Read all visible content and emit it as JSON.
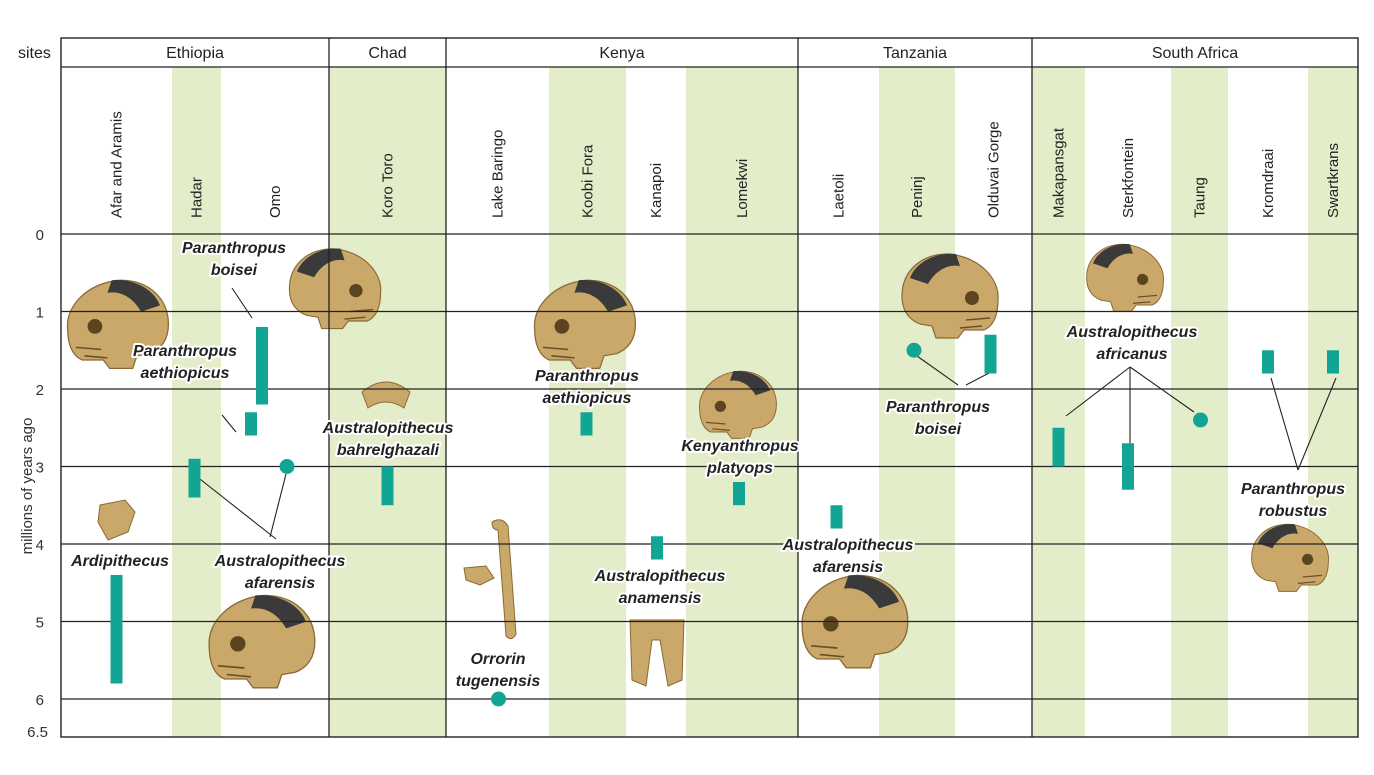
{
  "chart_data": {
    "type": "range-timeline",
    "ylabel": "millions of years ago",
    "y_ticks": [
      0,
      1,
      2,
      3,
      4,
      5,
      6,
      6.5
    ],
    "y_tick_labels": [
      "0",
      "1",
      "2",
      "3",
      "4",
      "5",
      "6",
      "6.5"
    ],
    "header_label": "sites",
    "countries": [
      {
        "name": "Ethiopia",
        "sites": [
          0,
          1,
          2
        ]
      },
      {
        "name": "Chad",
        "sites": [
          3
        ]
      },
      {
        "name": "Kenya",
        "sites": [
          4,
          5,
          6,
          7
        ]
      },
      {
        "name": "Tanzania",
        "sites": [
          8,
          9,
          10
        ]
      },
      {
        "name": "South Africa",
        "sites": [
          11,
          12,
          13,
          14,
          15
        ]
      }
    ],
    "sites": [
      {
        "name": "Afar and Aramis",
        "shaded": false
      },
      {
        "name": "Hadar",
        "shaded": true
      },
      {
        "name": "Omo",
        "shaded": false
      },
      {
        "name": "Koro Toro",
        "shaded": true
      },
      {
        "name": "Lake Baringo",
        "shaded": false
      },
      {
        "name": "Koobi Fora",
        "shaded": true
      },
      {
        "name": "Kanapoi",
        "shaded": false
      },
      {
        "name": "Lomekwi",
        "shaded": true
      },
      {
        "name": "Laetoli",
        "shaded": false
      },
      {
        "name": "Peninj",
        "shaded": true
      },
      {
        "name": "Olduvai Gorge",
        "shaded": false
      },
      {
        "name": "Makapansgat",
        "shaded": true
      },
      {
        "name": "Sterkfontein",
        "shaded": false
      },
      {
        "name": "Taung",
        "shaded": true
      },
      {
        "name": "Kromdraai",
        "shaded": false
      },
      {
        "name": "Swartkrans",
        "shaded": true
      }
    ],
    "ranges": [
      {
        "site": "Afar and Aramis",
        "species": "Ardipithecus",
        "from": 4.4,
        "to": 5.8
      },
      {
        "site": "Hadar",
        "species": "Australopithecus afarensis",
        "from": 2.9,
        "to": 3.4
      },
      {
        "site": "Omo",
        "species": "Paranthropus aethiopicus",
        "from": 2.3,
        "to": 2.6
      },
      {
        "site": "Omo",
        "species": "Paranthropus boisei",
        "from": 1.2,
        "to": 2.2
      },
      {
        "site": "Koro Toro",
        "species": "Australopithecus bahrelghazali",
        "from": 3.0,
        "to": 3.5
      },
      {
        "site": "Koobi Fora",
        "species": "Paranthropus aethiopicus",
        "from": 2.3,
        "to": 2.6
      },
      {
        "site": "Kanapoi",
        "species": "Australopithecus anamensis",
        "from": 3.9,
        "to": 4.2
      },
      {
        "site": "Lomekwi",
        "species": "Kenyanthropus platyops",
        "from": 3.2,
        "to": 3.5
      },
      {
        "site": "Laetoli",
        "species": "Australopithecus afarensis",
        "from": 3.5,
        "to": 3.8
      },
      {
        "site": "Olduvai Gorge",
        "species": "Paranthropus boisei",
        "from": 1.3,
        "to": 1.8
      },
      {
        "site": "Makapansgat",
        "species": "Australopithecus africanus",
        "from": 2.5,
        "to": 3.0
      },
      {
        "site": "Sterkfontein",
        "species": "Australopithecus africanus",
        "from": 2.7,
        "to": 3.3
      },
      {
        "site": "Kromdraai",
        "species": "Paranthropus robustus",
        "from": 1.5,
        "to": 1.8
      },
      {
        "site": "Swartkrans",
        "species": "Paranthropus robustus",
        "from": 1.5,
        "to": 1.8
      }
    ],
    "points": [
      {
        "site": "Omo",
        "species": "Australopithecus afarensis",
        "value": 3.0
      },
      {
        "site": "Lake Baringo",
        "species": "Orrorin tugenensis",
        "value": 6.0
      },
      {
        "site": "Peninj",
        "species": "Paranthropus boisei",
        "value": 1.5
      },
      {
        "site": "Taung",
        "species": "Australopithecus africanus",
        "value": 2.4
      }
    ],
    "species_labels": {
      "paranthropus_boisei_1": [
        "Paranthropus",
        "boisei"
      ],
      "paranthropus_aethiopicus_1": [
        "Paranthropus",
        "aethiopicus"
      ],
      "ardipithecus": [
        "Ardipithecus"
      ],
      "australopithecus_afarensis_1": [
        "Australopithecus",
        "afarensis"
      ],
      "australopithecus_bahrelghazali": [
        "Australopithecus",
        "bahrelghazali"
      ],
      "paranthropus_aethiopicus_2": [
        "Paranthropus",
        "aethiopicus"
      ],
      "kenyanthropus_platyops": [
        "Kenyanthropus",
        "platyops"
      ],
      "australopithecus_anamensis": [
        "Australopithecus",
        "anamensis"
      ],
      "orrorin_tugenensis": [
        "Orrorin",
        "tugenensis"
      ],
      "australopithecus_afarensis_2": [
        "Australopithecus",
        "afarensis"
      ],
      "paranthropus_boisei_2": [
        "Paranthropus",
        "boisei"
      ],
      "australopithecus_africanus": [
        "Australopithecus",
        "africanus"
      ],
      "paranthropus_robustus": [
        "Paranthropus",
        "robustus"
      ]
    },
    "colors": {
      "band": "#e4edc9",
      "marker": "#13a594",
      "grid": "#222222",
      "bone": "#c9a86a",
      "bone_dark": "#3a3a3a"
    }
  }
}
